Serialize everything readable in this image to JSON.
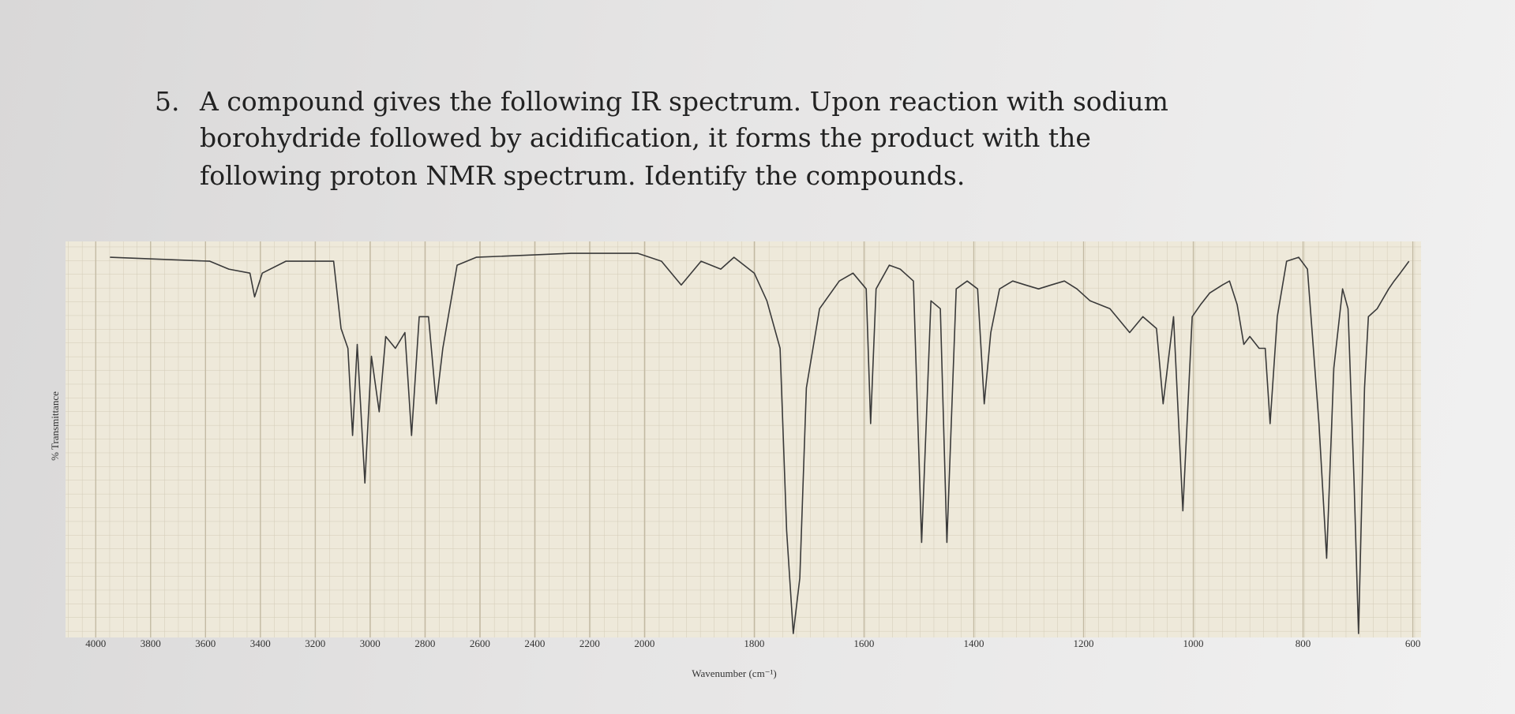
{
  "question": {
    "number": "5.",
    "lines": [
      "A compound gives the following IR spectrum.  Upon reaction with sodium",
      "borohydride followed by acidification, it forms the product with the",
      "following proton NMR spectrum.  Identify the compounds."
    ]
  },
  "chart_data": {
    "type": "line",
    "xlabel": "Wavenumber (cm⁻¹)",
    "ylabel": "% Transmittance",
    "x": [
      3948,
      3584,
      3515,
      3438,
      3421,
      3393,
      3307,
      3133,
      3106,
      3081,
      3064,
      3047,
      3019,
      2995,
      2967,
      2943,
      2908,
      2873,
      2849,
      2821,
      2787,
      2759,
      2735,
      2683,
      2613,
      2267,
      2024,
      1969,
      1933,
      1897,
      1861,
      1837,
      1800,
      1777,
      1753,
      1741,
      1729,
      1717,
      1705,
      1681,
      1645,
      1620,
      1596,
      1588,
      1578,
      1554,
      1534,
      1510,
      1495,
      1478,
      1461,
      1449,
      1432,
      1412,
      1393,
      1381,
      1369,
      1353,
      1329,
      1306,
      1282,
      1259,
      1235,
      1212,
      1188,
      1152,
      1116,
      1092,
      1067,
      1055,
      1036,
      1019,
      1002,
      987,
      970,
      947,
      934,
      920,
      908,
      897,
      880,
      869,
      860,
      847,
      830,
      808,
      792,
      771,
      757,
      744,
      728,
      718,
      707,
      699,
      688,
      681,
      665,
      644,
      634,
      623,
      607
    ],
    "values": [
      96,
      95,
      93,
      92,
      86,
      92,
      95,
      95,
      78,
      73,
      51,
      74,
      39,
      71,
      57,
      76,
      73,
      77,
      51,
      81,
      81,
      59,
      73,
      94,
      96,
      97,
      97,
      95,
      89,
      95,
      93,
      96,
      92,
      85,
      73,
      27,
      1,
      15,
      63,
      83,
      90,
      92,
      88,
      54,
      88,
      94,
      93,
      90,
      24,
      85,
      83,
      24,
      88,
      90,
      88,
      59,
      77,
      88,
      90,
      89,
      88,
      89,
      90,
      88,
      85,
      83,
      77,
      81,
      78,
      59,
      81,
      32,
      81,
      84,
      87,
      89,
      90,
      84,
      74,
      76,
      73,
      73,
      54,
      81,
      95,
      96,
      93,
      54,
      20,
      68,
      88,
      83,
      39,
      1,
      63,
      81,
      83,
      88,
      90,
      92,
      95
    ],
    "color": "#3a3a3a",
    "xlim": [
      4110,
      585
    ],
    "x_scale_break": 2000,
    "xticks": [
      4000,
      3800,
      3600,
      3400,
      3200,
      3000,
      2800,
      2600,
      2400,
      2200,
      2000,
      1800,
      1600,
      1400,
      1200,
      1000,
      800,
      600
    ],
    "ylim": [
      0,
      100
    ],
    "grid": true
  }
}
